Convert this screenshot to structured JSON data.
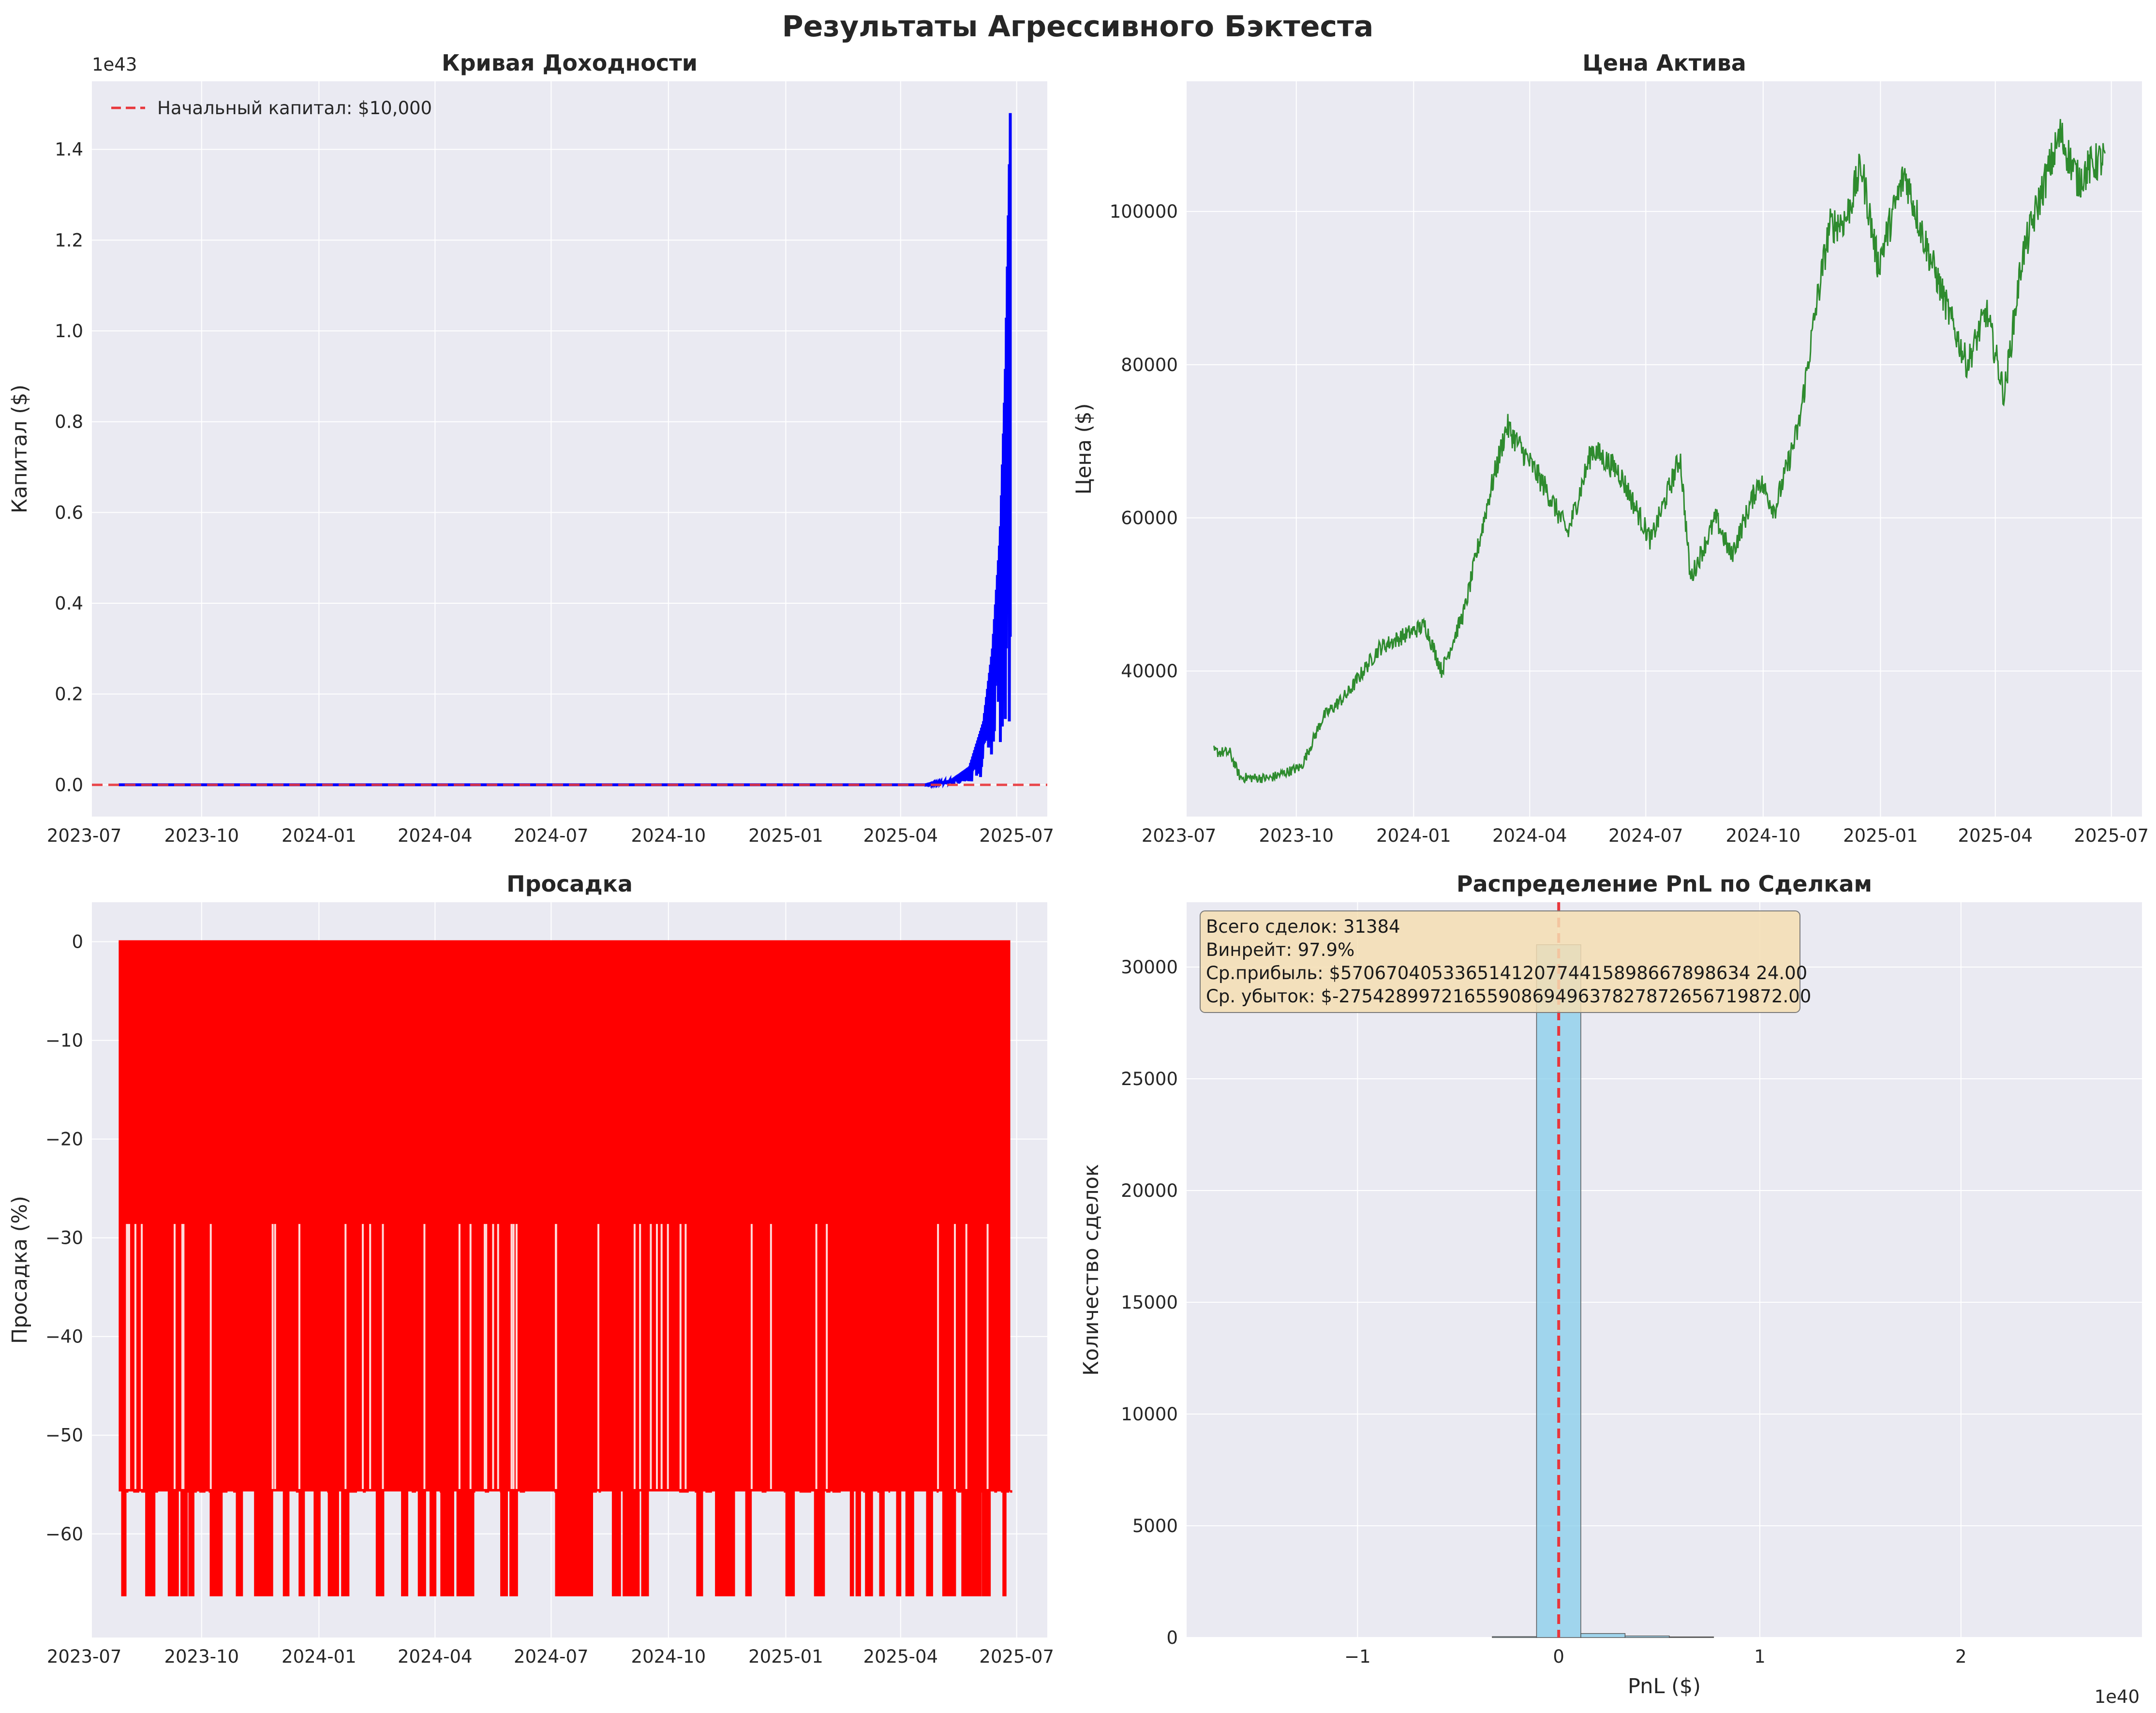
{
  "title": "Результаты Агрессивного Бэктеста",
  "colors": {
    "panel_bg": "#eaeaf2",
    "grid": "#ffffff",
    "equity": "#0000ff",
    "baseline": "#e8363b",
    "price": "#2e8b2e",
    "drawdown": "#ff0000",
    "hist": "#87ceeb",
    "stats_box": "#f5deb3"
  },
  "chart_data": [
    {
      "type": "line",
      "title": "Кривая Доходности",
      "xlabel": "",
      "ylabel": "Капитал ($)",
      "y_offset_label": "1e43",
      "x_ticks": [
        "2023-07",
        "2023-10",
        "2024-01",
        "2024-04",
        "2024-07",
        "2024-10",
        "2025-01",
        "2025-04",
        "2025-07"
      ],
      "y_ticks": [
        "0.0",
        "0.2",
        "0.4",
        "0.6",
        "0.8",
        "1.0",
        "1.2",
        "1.4"
      ],
      "xlim": [
        "2023-07-07",
        "2025-07-25"
      ],
      "ylim": [
        -0.07,
        1.55
      ],
      "series": [
        {
          "name": "",
          "x": [
            "2023-07-28",
            "2025-03-01",
            "2025-04-20",
            "2025-05-10",
            "2025-05-25",
            "2025-06-05",
            "2025-06-12",
            "2025-06-18",
            "2025-06-22",
            "2025-06-26"
          ],
          "y": [
            0.0,
            0.0,
            0.0,
            0.01,
            0.04,
            0.14,
            0.3,
            0.55,
            0.9,
            1.48
          ]
        }
      ],
      "hline": {
        "y": 0.0,
        "label": "Начальный капитал: $10,000"
      },
      "legend": "top-left"
    },
    {
      "type": "line",
      "title": "Цена Актива",
      "xlabel": "",
      "ylabel": "Цена ($)",
      "x_ticks": [
        "2023-07",
        "2023-10",
        "2024-01",
        "2024-04",
        "2024-07",
        "2024-10",
        "2025-01",
        "2025-04",
        "2025-07"
      ],
      "y_ticks": [
        "40000",
        "60000",
        "80000",
        "100000"
      ],
      "xlim": [
        "2023-07-07",
        "2025-07-25"
      ],
      "ylim": [
        21000,
        117000
      ],
      "series": [
        {
          "name": "",
          "x": [
            "2023-07-28",
            "2023-08-10",
            "2023-08-18",
            "2023-09-10",
            "2023-10-05",
            "2023-10-22",
            "2023-11-10",
            "2023-12-05",
            "2024-01-10",
            "2024-01-23",
            "2024-02-10",
            "2024-02-28",
            "2024-03-14",
            "2024-04-13",
            "2024-05-01",
            "2024-05-20",
            "2024-06-10",
            "2024-07-05",
            "2024-07-28",
            "2024-08-05",
            "2024-08-25",
            "2024-09-06",
            "2024-09-28",
            "2024-10-10",
            "2024-10-29",
            "2024-11-12",
            "2024-11-22",
            "2024-12-05",
            "2024-12-17",
            "2024-12-30",
            "2025-01-20",
            "2025-02-03",
            "2025-02-25",
            "2025-03-10",
            "2025-03-25",
            "2025-04-08",
            "2025-04-22",
            "2025-05-10",
            "2025-05-22",
            "2025-06-05",
            "2025-06-15",
            "2025-06-26"
          ],
          "y": [
            29500,
            29300,
            26100,
            26000,
            27500,
            34000,
            37000,
            43000,
            46000,
            40000,
            48000,
            62000,
            72000,
            64000,
            58000,
            69000,
            66000,
            57000,
            68000,
            52000,
            60000,
            55000,
            65000,
            61000,
            72000,
            88000,
            98000,
            99000,
            106000,
            93000,
            105000,
            97000,
            86000,
            80000,
            87000,
            76000,
            94000,
            104000,
            110000,
            104000,
            106000,
            107000
          ]
        }
      ]
    },
    {
      "type": "area",
      "title": "Просадка",
      "xlabel": "",
      "ylabel": "Просадка (%)",
      "x_ticks": [
        "2023-07",
        "2023-10",
        "2024-01",
        "2024-04",
        "2024-07",
        "2024-10",
        "2025-01",
        "2025-04",
        "2025-07"
      ],
      "y_ticks": [
        "0",
        "−10",
        "−20",
        "−30",
        "−40",
        "−50",
        "−60"
      ],
      "xlim": [
        "2023-07-07",
        "2025-07-25"
      ],
      "ylim": [
        -70.5,
        4
      ],
      "series": [
        {
          "name": "",
          "x": [
            "2023-07-28",
            "2025-06-26"
          ],
          "y": [
            0,
            0
          ]
        }
      ],
      "drawdown_levels": [
        -28.6,
        -55.7,
        -66.2
      ]
    },
    {
      "type": "bar",
      "title": "Распределение PnL по Сделкам",
      "xlabel": "PnL ($)",
      "ylabel": "Количество сделок",
      "x_offset_label": "1e40",
      "x_ticks": [
        "−1",
        "0",
        "1",
        "2"
      ],
      "y_ticks": [
        "0",
        "5000",
        "10000",
        "15000",
        "20000",
        "25000",
        "30000"
      ],
      "xlim": [
        -1.85,
        2.9
      ],
      "ylim": [
        0,
        32900
      ],
      "bin_edges": [
        -0.33,
        -0.11,
        0.11,
        0.33,
        0.55,
        0.77
      ],
      "values": [
        40,
        31000,
        180,
        70,
        30
      ],
      "mean_line": 0.0,
      "stats": [
        "Всего сделок: 31384",
        "Винрейт: 97.9%",
        "Ср. прибыль: $5706704053365141207744158986678986342 4.00",
        "Ср. убыток: $-27542899721655908694963782787265671987 2.00"
      ]
    }
  ]
}
